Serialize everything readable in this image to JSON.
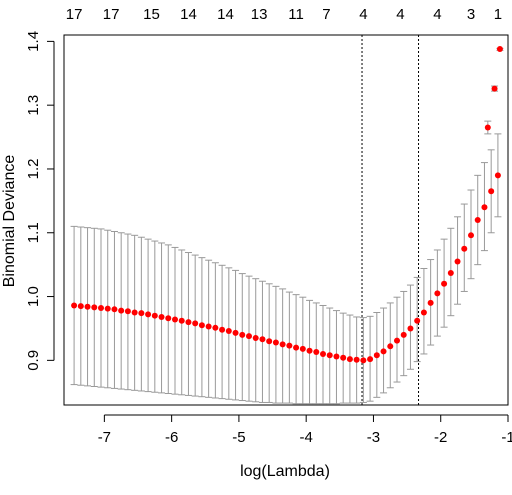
{
  "chart_data": {
    "type": "scatter",
    "title": "",
    "xlabel": "log(Lambda)",
    "ylabel": "Binomial Deviance",
    "xlim": [
      -7.6,
      -1.0
    ],
    "ylim": [
      0.83,
      1.41
    ],
    "x_ticks": [
      -7,
      -6,
      -5,
      -4,
      -3,
      -2,
      -1
    ],
    "y_ticks": [
      0.9,
      1.0,
      1.1,
      1.2,
      1.3,
      1.4
    ],
    "top_axis_labels": [
      {
        "x": -7.45,
        "label": "17"
      },
      {
        "x": -6.9,
        "label": "17"
      },
      {
        "x": -6.3,
        "label": "15"
      },
      {
        "x": -5.75,
        "label": "14"
      },
      {
        "x": -5.2,
        "label": "14"
      },
      {
        "x": -4.7,
        "label": "13"
      },
      {
        "x": -4.15,
        "label": "11"
      },
      {
        "x": -3.7,
        "label": "7"
      },
      {
        "x": -3.15,
        "label": "4"
      },
      {
        "x": -2.6,
        "label": "4"
      },
      {
        "x": -2.05,
        "label": "4"
      },
      {
        "x": -1.55,
        "label": "3"
      },
      {
        "x": -1.15,
        "label": "1"
      }
    ],
    "vlines": [
      -3.17,
      -2.33
    ],
    "series": [
      {
        "x": [
          -7.45,
          -7.35,
          -7.25,
          -7.15,
          -7.05,
          -6.95,
          -6.85,
          -6.75,
          -6.65,
          -6.55,
          -6.45,
          -6.35,
          -6.25,
          -6.15,
          -6.05,
          -5.95,
          -5.85,
          -5.75,
          -5.65,
          -5.55,
          -5.45,
          -5.35,
          -5.25,
          -5.15,
          -5.05,
          -4.95,
          -4.85,
          -4.75,
          -4.65,
          -4.55,
          -4.45,
          -4.35,
          -4.25,
          -4.15,
          -4.05,
          -3.95,
          -3.85,
          -3.75,
          -3.65,
          -3.55,
          -3.45,
          -3.35,
          -3.25,
          -3.15,
          -3.05,
          -2.95,
          -2.85,
          -2.75,
          -2.65,
          -2.55,
          -2.45,
          -2.35,
          -2.25,
          -2.15,
          -2.05,
          -1.95,
          -1.85,
          -1.75,
          -1.65,
          -1.55,
          -1.45,
          -1.35,
          -1.25,
          -1.15
        ],
        "y": [
          0.986,
          0.985,
          0.984,
          0.983,
          0.982,
          0.981,
          0.98,
          0.978,
          0.977,
          0.975,
          0.974,
          0.972,
          0.97,
          0.968,
          0.966,
          0.964,
          0.962,
          0.96,
          0.958,
          0.955,
          0.953,
          0.951,
          0.948,
          0.946,
          0.943,
          0.94,
          0.938,
          0.935,
          0.933,
          0.93,
          0.928,
          0.925,
          0.923,
          0.92,
          0.918,
          0.915,
          0.913,
          0.91,
          0.908,
          0.906,
          0.904,
          0.902,
          0.901,
          0.9,
          0.902,
          0.908,
          0.914,
          0.922,
          0.931,
          0.94,
          0.95,
          0.962,
          0.975,
          0.99,
          1.005,
          1.02,
          1.037,
          1.055,
          1.075,
          1.096,
          1.12,
          1.14,
          1.165,
          1.19
        ],
        "upper": [
          1.11,
          1.109,
          1.108,
          1.107,
          1.106,
          1.104,
          1.102,
          1.1,
          1.098,
          1.096,
          1.093,
          1.09,
          1.087,
          1.084,
          1.081,
          1.077,
          1.073,
          1.069,
          1.065,
          1.061,
          1.057,
          1.053,
          1.049,
          1.045,
          1.041,
          1.036,
          1.032,
          1.028,
          1.024,
          1.02,
          1.016,
          1.012,
          1.007,
          1.003,
          0.999,
          0.994,
          0.99,
          0.986,
          0.982,
          0.978,
          0.974,
          0.971,
          0.968,
          0.967,
          0.969,
          0.975,
          0.982,
          0.99,
          0.999,
          1.008,
          1.018,
          1.03,
          1.044,
          1.058,
          1.073,
          1.09,
          1.107,
          1.125,
          1.145,
          1.167,
          1.19,
          1.21,
          1.23,
          1.255
        ],
        "lower": [
          0.862,
          0.861,
          0.86,
          0.859,
          0.858,
          0.857,
          0.856,
          0.855,
          0.854,
          0.853,
          0.852,
          0.851,
          0.85,
          0.849,
          0.848,
          0.847,
          0.846,
          0.845,
          0.844,
          0.843,
          0.842,
          0.841,
          0.84,
          0.839,
          0.838,
          0.837,
          0.836,
          0.835,
          0.834,
          0.834,
          0.833,
          0.833,
          0.833,
          0.832,
          0.832,
          0.832,
          0.832,
          0.832,
          0.832,
          0.832,
          0.833,
          0.833,
          0.833,
          0.834,
          0.836,
          0.842,
          0.849,
          0.857,
          0.866,
          0.876,
          0.886,
          0.898,
          0.91,
          0.924,
          0.938,
          0.952,
          0.97,
          0.988,
          1.008,
          1.028,
          1.05,
          1.072,
          1.1,
          1.125
        ]
      }
    ],
    "extra_points": [
      {
        "x": -1.3,
        "y": 1.265,
        "upper": 1.275,
        "lower": 1.255
      },
      {
        "x": -1.2,
        "y": 1.326,
        "upper": 1.33,
        "lower": 1.322
      },
      {
        "x": -1.12,
        "y": 1.388,
        "upper": 1.389,
        "lower": 1.386
      }
    ],
    "colors": {
      "points": "#ff0000",
      "errorbars": "#999999",
      "axis": "#000000"
    },
    "grid": false,
    "legend": "none"
  }
}
